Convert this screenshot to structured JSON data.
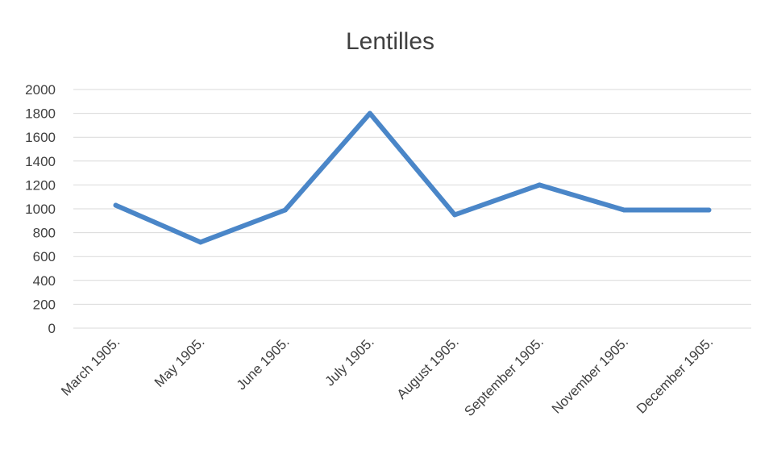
{
  "chart_data": {
    "type": "line",
    "title": "Lentilles",
    "xlabel": "",
    "ylabel": "",
    "categories": [
      "March 1905.",
      "May 1905.",
      "June 1905.",
      "July 1905.",
      "August 1905.",
      "September 1905.",
      "November 1905.",
      "December 1905."
    ],
    "series": [
      {
        "values": [
          1030,
          720,
          990,
          1800,
          950,
          1200,
          990,
          990
        ],
        "color": "#4a86c8"
      }
    ],
    "ylim": [
      0,
      2000
    ],
    "yticks": [
      "0",
      "200",
      "400",
      "600",
      "800",
      "1000",
      "1200",
      "1400",
      "1600",
      "1800",
      "2000"
    ],
    "grid": true,
    "legend": "none",
    "colors": {
      "line": "#4a86c8",
      "grid": "#d9d9d9",
      "text": "#404040",
      "background": "#ffffff"
    }
  }
}
